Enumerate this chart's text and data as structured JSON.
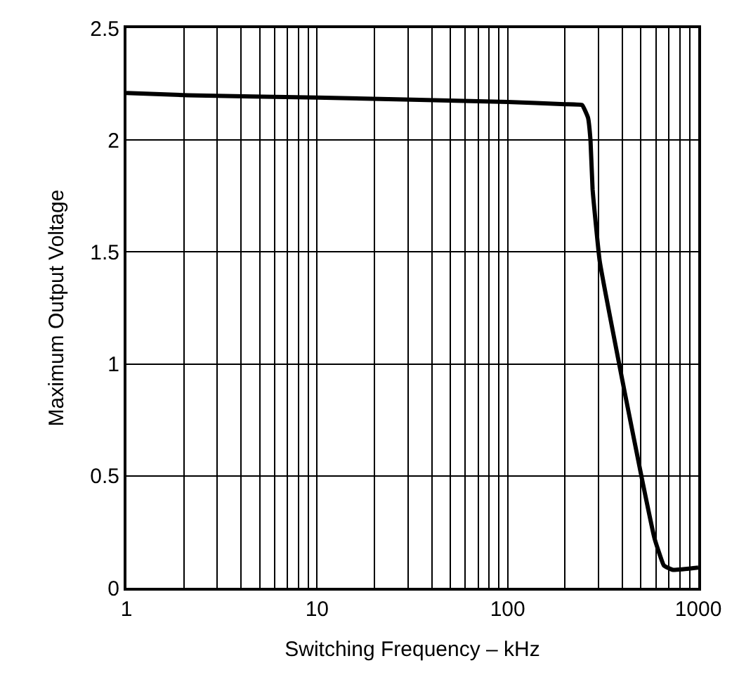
{
  "chart_data": {
    "type": "line",
    "xlabel": "Switching Frequency – kHz",
    "ylabel": "Maximum Output Voltage",
    "log": "x",
    "grid": true,
    "legend": false,
    "marker": "none",
    "line_style": "solid",
    "xlim": [
      1,
      1000
    ],
    "xticks": [
      1,
      10,
      100,
      1000,
      {
        "value": 2,
        "label": null
      },
      {
        "value": 3,
        "label": null
      },
      {
        "value": 4,
        "label": null
      },
      {
        "value": 5,
        "label": null
      },
      {
        "value": 6,
        "label": null
      },
      {
        "value": 7,
        "label": null
      },
      {
        "value": 8,
        "label": null
      },
      {
        "value": 9,
        "label": null
      },
      {
        "value": 20,
        "label": null
      },
      {
        "value": 30,
        "label": null
      },
      {
        "value": 40,
        "label": null
      },
      {
        "value": 50,
        "label": null
      },
      {
        "value": 60,
        "label": null
      },
      {
        "value": 70,
        "label": null
      },
      {
        "value": 80,
        "label": null
      },
      {
        "value": 90,
        "label": null
      },
      {
        "value": 200,
        "label": null
      },
      {
        "value": 300,
        "label": null
      },
      {
        "value": 400,
        "label": null
      },
      {
        "value": 500,
        "label": null
      },
      {
        "value": 600,
        "label": null
      },
      {
        "value": 700,
        "label": null
      },
      {
        "value": 800,
        "label": null
      },
      {
        "value": 900,
        "label": null
      }
    ],
    "ylim": [
      0,
      2.5
    ],
    "yticks": [
      0,
      0.5,
      1,
      1.5,
      2,
      2.5
    ],
    "series": [
      {
        "color": "#000000",
        "x": [
          1,
          2.1,
          10,
          100,
          200,
          246,
          264,
          272,
          279,
          304,
          412,
          514,
          590,
          660,
          737,
          1000
        ],
        "values": [
          2.21,
          2.2,
          2.19,
          2.17,
          2.16,
          2.156,
          2.1,
          2.0,
          1.78,
          1.46,
          0.87,
          0.46,
          0.22,
          0.1,
          0.08,
          0.09
        ]
      }
    ]
  }
}
